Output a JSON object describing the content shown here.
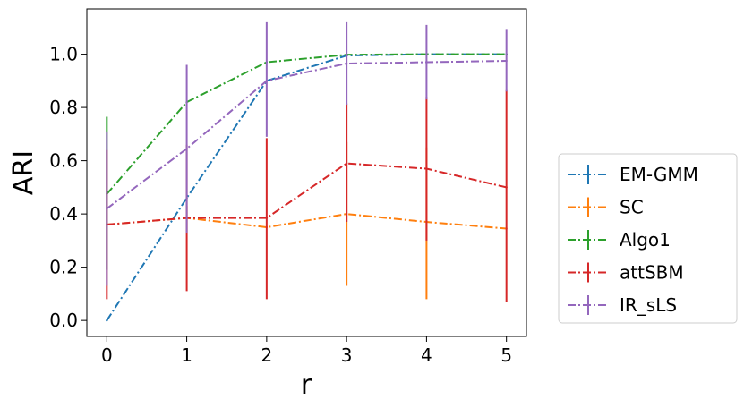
{
  "chart_data": {
    "type": "line",
    "xlabel": "r",
    "ylabel": "ARI",
    "x": [
      0,
      1,
      2,
      3,
      4,
      5
    ],
    "xlim": [
      -0.25,
      5.25
    ],
    "ylim": [
      -0.06,
      1.17
    ],
    "xticks": [
      "0",
      "1",
      "2",
      "3",
      "4",
      "5"
    ],
    "yticks": [
      "0.0",
      "0.2",
      "0.4",
      "0.6",
      "0.8",
      "1.0"
    ],
    "ytick_values": [
      0.0,
      0.2,
      0.4,
      0.6,
      0.8,
      1.0
    ],
    "grid": false,
    "legend_position": "outside-right",
    "series": [
      {
        "name": "EM-GMM",
        "color": "#1f77b4",
        "values": [
          0.0,
          0.46,
          0.9,
          0.995,
          1.0,
          1.0
        ],
        "err_low": [
          0.0,
          0.46,
          0.9,
          0.995,
          1.0,
          1.0
        ],
        "err_high": [
          0.0,
          0.46,
          0.9,
          0.995,
          1.0,
          1.0
        ]
      },
      {
        "name": "SC",
        "color": "#ff7f0e",
        "values": [
          0.36,
          0.385,
          0.35,
          0.4,
          0.37,
          0.345
        ],
        "err_low": [
          0.36,
          0.33,
          0.35,
          0.13,
          0.08,
          0.345
        ],
        "err_high": [
          0.36,
          0.43,
          0.35,
          0.67,
          0.65,
          0.345
        ]
      },
      {
        "name": "Algo1",
        "color": "#2ca02c",
        "values": [
          0.475,
          0.82,
          0.97,
          0.998,
          1.0,
          1.0
        ],
        "err_low": [
          0.19,
          0.82,
          0.97,
          0.998,
          1.0,
          1.0
        ],
        "err_high": [
          0.765,
          0.82,
          0.97,
          0.998,
          1.0,
          1.0
        ]
      },
      {
        "name": "attSBM",
        "color": "#d62728",
        "values": [
          0.36,
          0.385,
          0.385,
          0.59,
          0.57,
          0.5
        ],
        "err_low": [
          0.08,
          0.11,
          0.08,
          0.37,
          0.3,
          0.07
        ],
        "err_high": [
          0.64,
          0.66,
          0.685,
          0.815,
          0.84,
          0.865
        ]
      },
      {
        "name": "IR_sLS",
        "color": "#9467bd",
        "values": [
          0.42,
          0.645,
          0.9,
          0.965,
          0.97,
          0.975
        ],
        "err_low": [
          0.13,
          0.33,
          0.69,
          0.81,
          0.83,
          0.86
        ],
        "err_high": [
          0.71,
          0.96,
          1.12,
          1.12,
          1.11,
          1.095
        ]
      }
    ]
  }
}
